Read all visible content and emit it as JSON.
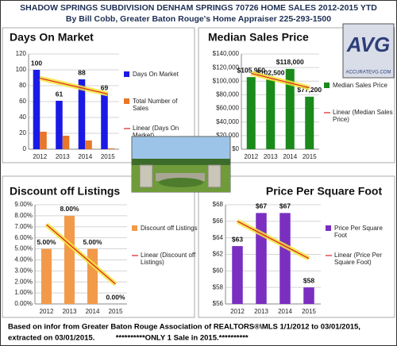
{
  "title": "SHADOW SPRINGS SUBDIVISION DENHAM SPRINGS 70726 HOME SALES 2012-2015 YTD",
  "subtitle": "By Bill Cobb, Greater Baton Rouge's Home Appraiser 225-293-1500",
  "logo": {
    "letters": "AVG",
    "url": "ACCURATEVG.COM"
  },
  "footer": [
    "Based on infor from Greater Baton Rouge Association of REALTORS®\\MLS 1/1/2012 to 03/01/2015,",
    "extracted on 03/01/2015.          **********ONLY 1 Sale in 2015.**********"
  ],
  "chart_data": [
    {
      "type": "bar",
      "title": "Days On Market",
      "categories": [
        "2012",
        "2013",
        "2014",
        "2015"
      ],
      "series": [
        {
          "name": "Days On Market",
          "color": "#1a1ae6",
          "values": [
            100,
            61,
            88,
            69
          ],
          "labels": true
        },
        {
          "name": "Total Number of Sales",
          "color": "#e8772a",
          "values": [
            22,
            17,
            11,
            1
          ]
        },
        {
          "name": "Linear (Days On Market)",
          "color": "#e02020",
          "type": "line",
          "values": [
            89.4,
            82.8,
            76.2,
            69.6
          ]
        }
      ],
      "ylim": [
        0,
        120
      ],
      "yticks": [
        0,
        20,
        40,
        60,
        80,
        100,
        120
      ],
      "grid": true
    },
    {
      "type": "bar",
      "title": "Median Sales Price",
      "categories": [
        "2012",
        "2013",
        "2014",
        "2015"
      ],
      "series": [
        {
          "name": "Median Sales Price",
          "color": "#1a8a1a",
          "values": [
            105950,
            102500,
            118000,
            77200
          ],
          "value_labels": [
            "$105,950",
            "$102,500",
            "$118,000",
            "$77,200"
          ]
        },
        {
          "name": "Linear (Median Sales Price)",
          "color": "#e02020",
          "type": "line",
          "values": [
            111525,
            104450,
            97375,
            90300
          ]
        }
      ],
      "ylim": [
        0,
        140000
      ],
      "yticks": [
        {
          "value": 0,
          "label": "$0"
        },
        {
          "value": 20000,
          "label": "$20,000"
        },
        {
          "value": 40000,
          "label": "$40,000"
        },
        {
          "value": 60000,
          "label": "$60,000"
        },
        {
          "value": 80000,
          "label": "$80,000"
        },
        {
          "value": 100000,
          "label": "$100,000"
        },
        {
          "value": 120000,
          "label": "$120,000"
        },
        {
          "value": 140000,
          "label": "$140,000"
        }
      ],
      "grid": true
    },
    {
      "type": "bar",
      "title": "Discount off Listings",
      "categories": [
        "2012",
        "2013",
        "2014",
        "2015"
      ],
      "series": [
        {
          "name": "Discount off Listings",
          "color": "#f29a4a",
          "values": [
            5,
            8,
            5,
            0
          ],
          "value_labels": [
            "5.00%",
            "8.00%",
            "5.00%",
            "0.00%"
          ]
        },
        {
          "name": "Linear (Discount off Listings)",
          "color": "#e02020",
          "type": "line",
          "values": [
            7.2,
            5.4,
            3.6,
            1.8
          ]
        }
      ],
      "ylim": [
        0,
        9
      ],
      "yticks": [
        {
          "value": 0,
          "label": "0.00%"
        },
        {
          "value": 1,
          "label": "1.00%"
        },
        {
          "value": 2,
          "label": "2.00%"
        },
        {
          "value": 3,
          "label": "3.00%"
        },
        {
          "value": 4,
          "label": "4.00%"
        },
        {
          "value": 5,
          "label": "5.00%"
        },
        {
          "value": 6,
          "label": "6.00%"
        },
        {
          "value": 7,
          "label": "7.00%"
        },
        {
          "value": 8,
          "label": "8.00%"
        },
        {
          "value": 9,
          "label": "9.00%"
        }
      ],
      "grid": true
    },
    {
      "type": "bar",
      "title": "Price Per Square Foot",
      "categories": [
        "2012",
        "2013",
        "2014",
        "2015"
      ],
      "series": [
        {
          "name": "Price Per Square Foot",
          "color": "#7a2fc0",
          "values": [
            63,
            67,
            67,
            58
          ],
          "value_labels": [
            "$63",
            "$67",
            "$67",
            "$58"
          ]
        },
        {
          "name": "Linear (Price Per Square Foot)",
          "color": "#e02020",
          "type": "line",
          "values": [
            66,
            64.5,
            63,
            61.5
          ]
        }
      ],
      "ylim": [
        56,
        68
      ],
      "yticks": [
        {
          "value": 56,
          "label": "$56"
        },
        {
          "value": 58,
          "label": "$58"
        },
        {
          "value": 60,
          "label": "$60"
        },
        {
          "value": 62,
          "label": "$62"
        },
        {
          "value": 64,
          "label": "$64"
        },
        {
          "value": 66,
          "label": "$66"
        },
        {
          "value": 68,
          "label": "$68"
        }
      ],
      "grid": true
    }
  ]
}
